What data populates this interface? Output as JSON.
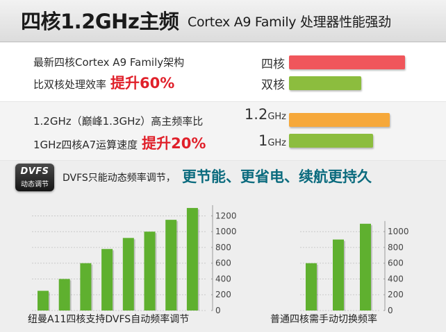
{
  "header": {
    "title": "四核1.2GHz主频",
    "subtitle": "Cortex A9 Family 处理器性能强劲"
  },
  "section1": {
    "line1": "最新四核Cortex A9 Family架构",
    "line2": "比双核处理效率",
    "highlight": "提升60%",
    "colors": [
      "#f0565b",
      "#8cbd3e"
    ],
    "chart_data": {
      "type": "bar",
      "orientation": "horizontal",
      "categories": [
        "四核",
        "双核"
      ],
      "values": [
        160,
        100
      ],
      "title": "",
      "xlabel": "",
      "ylabel": ""
    }
  },
  "section2": {
    "line1": "1.2GHz（巅峰1.3GHz）高主频率比",
    "line2": "1GHz四核A7运算速度",
    "highlight": "提升20%",
    "labels": [
      {
        "main": "1.2",
        "unit": "GHz"
      },
      {
        "main": "1",
        "unit": "GHz"
      }
    ],
    "colors": [
      "#f6a83a",
      "#8cbd3e"
    ],
    "chart_data": {
      "type": "bar",
      "orientation": "horizontal",
      "categories": [
        "1.2GHz",
        "1GHz"
      ],
      "values": [
        120,
        100
      ],
      "title": "",
      "xlabel": "",
      "ylabel": ""
    }
  },
  "dvfs": {
    "icon_line1": "DVFS",
    "icon_line2": "动态调节",
    "text": "DVFS只能动态频率调节，",
    "slogan": "更节能、更省电、续航更持久"
  },
  "chart_data": [
    {
      "type": "bar",
      "title": "纽曼A11四核支持DVFS自动频率调节",
      "values": [
        250,
        400,
        600,
        780,
        920,
        1000,
        1150,
        1300
      ],
      "ylim": [
        0,
        1300
      ],
      "yticks": [
        0,
        200,
        400,
        600,
        800,
        1000,
        1200
      ],
      "xlabel": "",
      "ylabel": "",
      "bar_color": "#5fb02f"
    },
    {
      "type": "bar",
      "title": "普通四核需手动切换频率",
      "values": [
        600,
        900,
        1100
      ],
      "ylim": [
        0,
        1100
      ],
      "yticks": [
        0,
        200,
        400,
        600,
        800,
        1000
      ],
      "xlabel": "",
      "ylabel": "",
      "bar_color": "#5fb02f"
    }
  ]
}
